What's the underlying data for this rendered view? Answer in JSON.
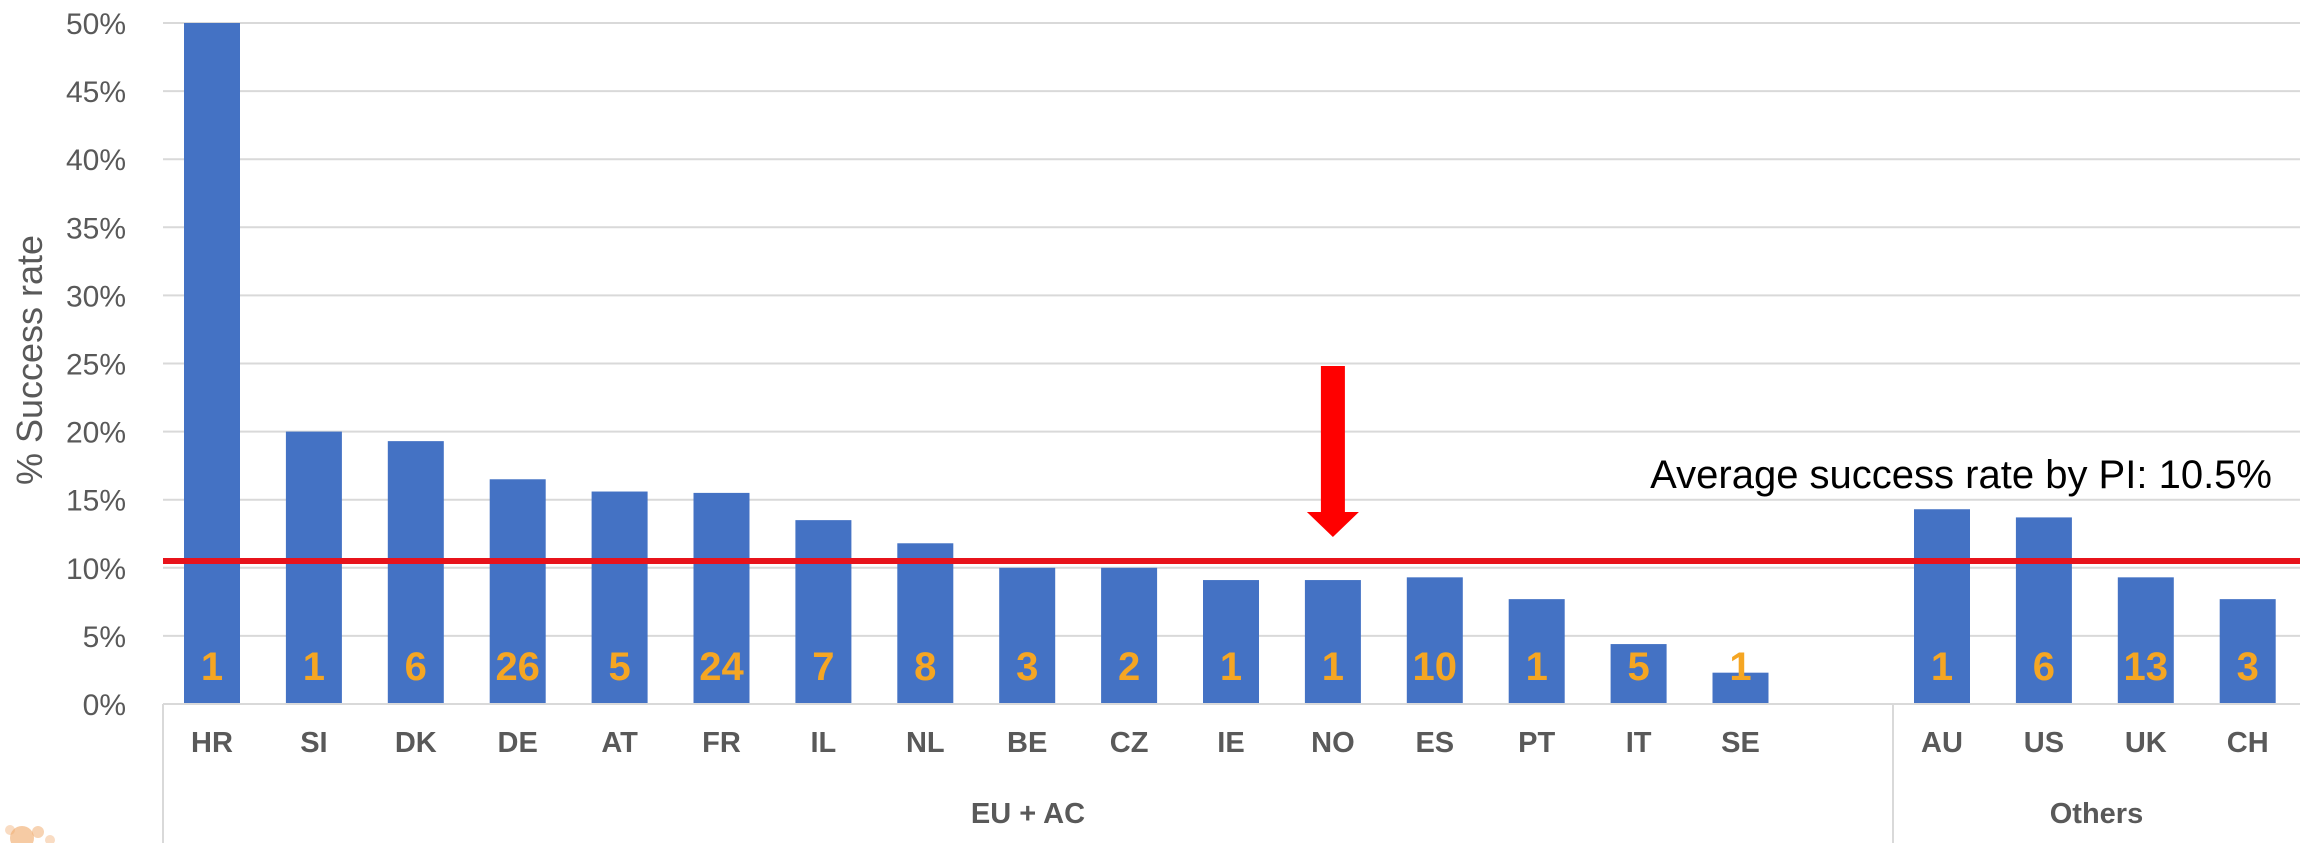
{
  "chart_data": {
    "type": "bar",
    "ylabel": "% Success rate",
    "ylim": [
      0,
      50
    ],
    "yticks": [
      "0%",
      "5%",
      "10%",
      "15%",
      "20%",
      "25%",
      "30%",
      "35%",
      "40%",
      "45%",
      "50%"
    ],
    "grid": true,
    "groups": [
      {
        "name": "EU + AC",
        "categories": [
          "HR",
          "SI",
          "DK",
          "DE",
          "AT",
          "FR",
          "IL",
          "NL",
          "BE",
          "CZ",
          "IE",
          "NO",
          "ES",
          "PT",
          "IT",
          "SE"
        ],
        "values": [
          50,
          20,
          19.3,
          16.5,
          15.6,
          15.5,
          13.5,
          11.8,
          10,
          10,
          9.1,
          9.1,
          9.3,
          7.7,
          4.4,
          2.3
        ],
        "counts": [
          "1",
          "1",
          "6",
          "26",
          "5",
          "24",
          "7",
          "8",
          "3",
          "2",
          "1",
          "1",
          "10",
          "1",
          "5",
          "1"
        ]
      },
      {
        "name": "Others",
        "categories": [
          "AU",
          "US",
          "UK",
          "CH"
        ],
        "values": [
          14.3,
          13.7,
          9.3,
          7.7
        ],
        "counts": [
          "1",
          "6",
          "13",
          "3"
        ]
      }
    ],
    "average": {
      "label": "Average success rate by PI: 10.5%",
      "value": 10.5
    },
    "highlight_arrow_category": "NO",
    "colors": {
      "bar": "#4472C4",
      "count_label": "#F5A623",
      "average_line": "#E8131B",
      "arrow": "#FF0000"
    }
  }
}
